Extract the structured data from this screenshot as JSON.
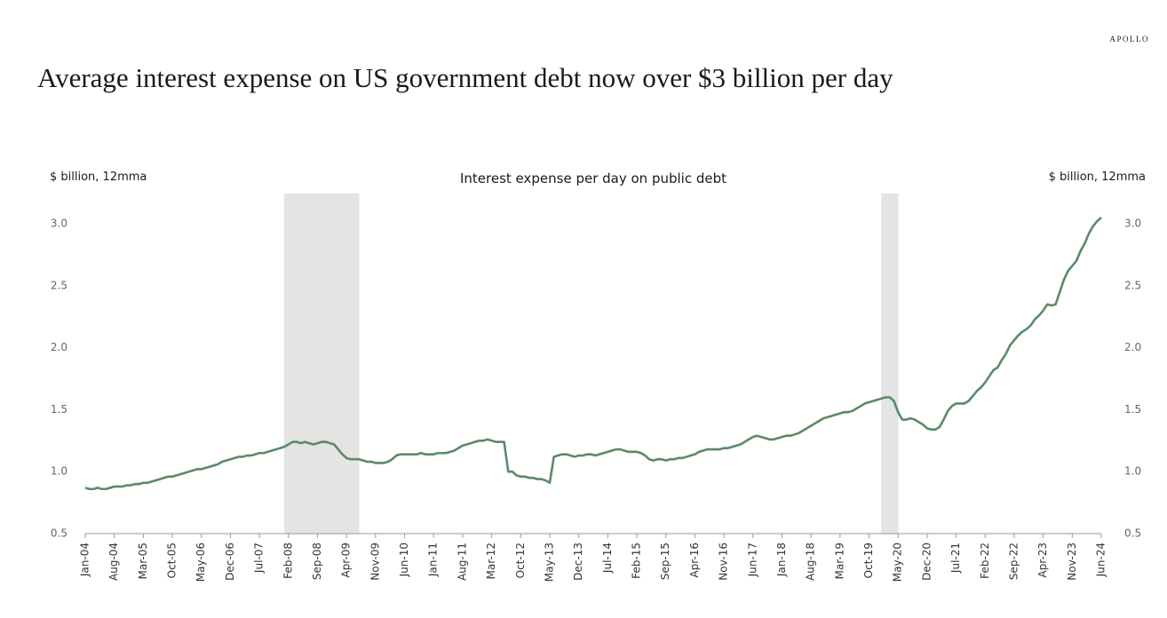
{
  "brand": "APOLLO",
  "chart_data": {
    "type": "line",
    "title": "Average interest expense on US government debt now over $3 billion per day",
    "subtitle": "Interest expense per day on public debt",
    "y_label": "$ billion, 12mma",
    "y2_label": "$ billion, 12mma",
    "color": "#5b8a68",
    "shade_color": "#e4e4e4",
    "shaded_periods": [
      [
        49,
        65
      ],
      [
        193,
        195
      ]
    ],
    "ylim": [
      0.5,
      3.1
    ],
    "yticks": [
      {
        "value": 0.5,
        "label": "0.5"
      },
      {
        "value": 1,
        "label": "1.0"
      },
      {
        "value": 1.5,
        "label": "1.5"
      },
      {
        "value": 2,
        "label": "2.0"
      },
      {
        "value": 2.5,
        "label": "2.5"
      },
      {
        "value": 3,
        "label": "3.0"
      }
    ],
    "y2lim": [
      0.5,
      3.1
    ],
    "y2ticks": [
      {
        "value": 0.5,
        "label": "0.5"
      },
      {
        "value": 1,
        "label": "1.0"
      },
      {
        "value": 1.5,
        "label": "1.5"
      },
      {
        "value": 2,
        "label": "2.0"
      },
      {
        "value": 2.5,
        "label": "2.5"
      },
      {
        "value": 3,
        "label": "3.0"
      }
    ],
    "categories": [
      "Jan-04",
      null,
      null,
      null,
      null,
      null,
      null,
      "Aug-04",
      null,
      null,
      null,
      null,
      null,
      null,
      "Mar-05",
      null,
      null,
      null,
      null,
      null,
      null,
      "Oct-05",
      null,
      null,
      null,
      null,
      null,
      null,
      "May-06",
      null,
      null,
      null,
      null,
      null,
      null,
      "Dec-06",
      null,
      null,
      null,
      null,
      null,
      null,
      "Jul-07",
      null,
      null,
      null,
      null,
      null,
      null,
      "Feb-08",
      null,
      null,
      null,
      null,
      null,
      null,
      "Sep-08",
      null,
      null,
      null,
      null,
      null,
      null,
      "Apr-09",
      null,
      null,
      null,
      null,
      null,
      null,
      "Nov-09",
      null,
      null,
      null,
      null,
      null,
      null,
      "Jun-10",
      null,
      null,
      null,
      null,
      null,
      null,
      "Jan-11",
      null,
      null,
      null,
      null,
      null,
      null,
      "Aug-11",
      null,
      null,
      null,
      null,
      null,
      null,
      "Mar-12",
      null,
      null,
      null,
      null,
      null,
      null,
      "Oct-12",
      null,
      null,
      null,
      null,
      null,
      null,
      "May-13",
      null,
      null,
      null,
      null,
      null,
      null,
      "Dec-13",
      null,
      null,
      null,
      null,
      null,
      null,
      "Jul-14",
      null,
      null,
      null,
      null,
      null,
      null,
      "Feb-15",
      null,
      null,
      null,
      null,
      null,
      null,
      "Sep-15",
      null,
      null,
      null,
      null,
      null,
      null,
      "Apr-16",
      null,
      null,
      null,
      null,
      null,
      null,
      "Nov-16",
      null,
      null,
      null,
      null,
      null,
      null,
      "Jun-17",
      null,
      null,
      null,
      null,
      null,
      null,
      "Jan-18",
      null,
      null,
      null,
      null,
      null,
      null,
      "Aug-18",
      null,
      null,
      null,
      null,
      null,
      null,
      "Mar-19",
      null,
      null,
      null,
      null,
      null,
      null,
      "Oct-19",
      null,
      null,
      null,
      null,
      null,
      null,
      "May-20",
      null,
      null,
      null,
      null,
      null,
      null,
      "Dec-20",
      null,
      null,
      null,
      null,
      null,
      null,
      "Jul-21",
      null,
      null,
      null,
      null,
      null,
      null,
      "Feb-22",
      null,
      null,
      null,
      null,
      null,
      null,
      "Sep-22",
      null,
      null,
      null,
      null,
      null,
      null,
      "Apr-23",
      null,
      null,
      null,
      null,
      null,
      null,
      "Nov-23",
      null,
      null,
      null,
      null,
      null,
      null,
      "Jun-24"
    ],
    "values": [
      0.87,
      0.86,
      0.86,
      0.87,
      0.86,
      0.86,
      0.87,
      0.88,
      0.88,
      0.88,
      0.89,
      0.89,
      0.9,
      0.9,
      0.91,
      0.91,
      0.92,
      0.93,
      0.94,
      0.95,
      0.96,
      0.96,
      0.97,
      0.98,
      0.99,
      1.0,
      1.01,
      1.02,
      1.02,
      1.03,
      1.04,
      1.05,
      1.06,
      1.08,
      1.09,
      1.1,
      1.11,
      1.12,
      1.12,
      1.13,
      1.13,
      1.14,
      1.15,
      1.15,
      1.16,
      1.17,
      1.18,
      1.19,
      1.2,
      1.22,
      1.24,
      1.24,
      1.23,
      1.24,
      1.23,
      1.22,
      1.23,
      1.24,
      1.24,
      1.23,
      1.22,
      1.18,
      1.14,
      1.11,
      1.1,
      1.1,
      1.1,
      1.09,
      1.08,
      1.08,
      1.07,
      1.07,
      1.07,
      1.08,
      1.1,
      1.13,
      1.14,
      1.14,
      1.14,
      1.14,
      1.14,
      1.15,
      1.14,
      1.14,
      1.14,
      1.15,
      1.15,
      1.15,
      1.16,
      1.17,
      1.19,
      1.21,
      1.22,
      1.23,
      1.24,
      1.25,
      1.25,
      1.26,
      1.25,
      1.24,
      1.24,
      1.24,
      1.0,
      1.0,
      0.97,
      0.96,
      0.96,
      0.95,
      0.95,
      0.94,
      0.94,
      0.93,
      0.91,
      1.12,
      1.13,
      1.14,
      1.14,
      1.13,
      1.12,
      1.13,
      1.13,
      1.14,
      1.14,
      1.13,
      1.14,
      1.15,
      1.16,
      1.17,
      1.18,
      1.18,
      1.17,
      1.16,
      1.16,
      1.16,
      1.15,
      1.13,
      1.1,
      1.09,
      1.1,
      1.1,
      1.09,
      1.1,
      1.1,
      1.11,
      1.11,
      1.12,
      1.13,
      1.14,
      1.16,
      1.17,
      1.18,
      1.18,
      1.18,
      1.18,
      1.19,
      1.19,
      1.2,
      1.21,
      1.22,
      1.24,
      1.26,
      1.28,
      1.29,
      1.28,
      1.27,
      1.26,
      1.26,
      1.27,
      1.28,
      1.29,
      1.29,
      1.3,
      1.31,
      1.33,
      1.35,
      1.37,
      1.39,
      1.41,
      1.43,
      1.44,
      1.45,
      1.46,
      1.47,
      1.48,
      1.48,
      1.49,
      1.51,
      1.53,
      1.55,
      1.56,
      1.57,
      1.58,
      1.59,
      1.6,
      1.6,
      1.57,
      1.48,
      1.42,
      1.42,
      1.43,
      1.42,
      1.4,
      1.38,
      1.35,
      1.34,
      1.34,
      1.36,
      1.42,
      1.49,
      1.53,
      1.55,
      1.55,
      1.55,
      1.57,
      1.61,
      1.65,
      1.68,
      1.72,
      1.77,
      1.82,
      1.84,
      1.9,
      1.95,
      2.02,
      2.06,
      2.1,
      2.13,
      2.15,
      2.18,
      2.23,
      2.26,
      2.3,
      2.35,
      2.34,
      2.35,
      2.45,
      2.55,
      2.62,
      2.66,
      2.7,
      2.78,
      2.84,
      2.92,
      2.98,
      3.02,
      3.05
    ]
  }
}
